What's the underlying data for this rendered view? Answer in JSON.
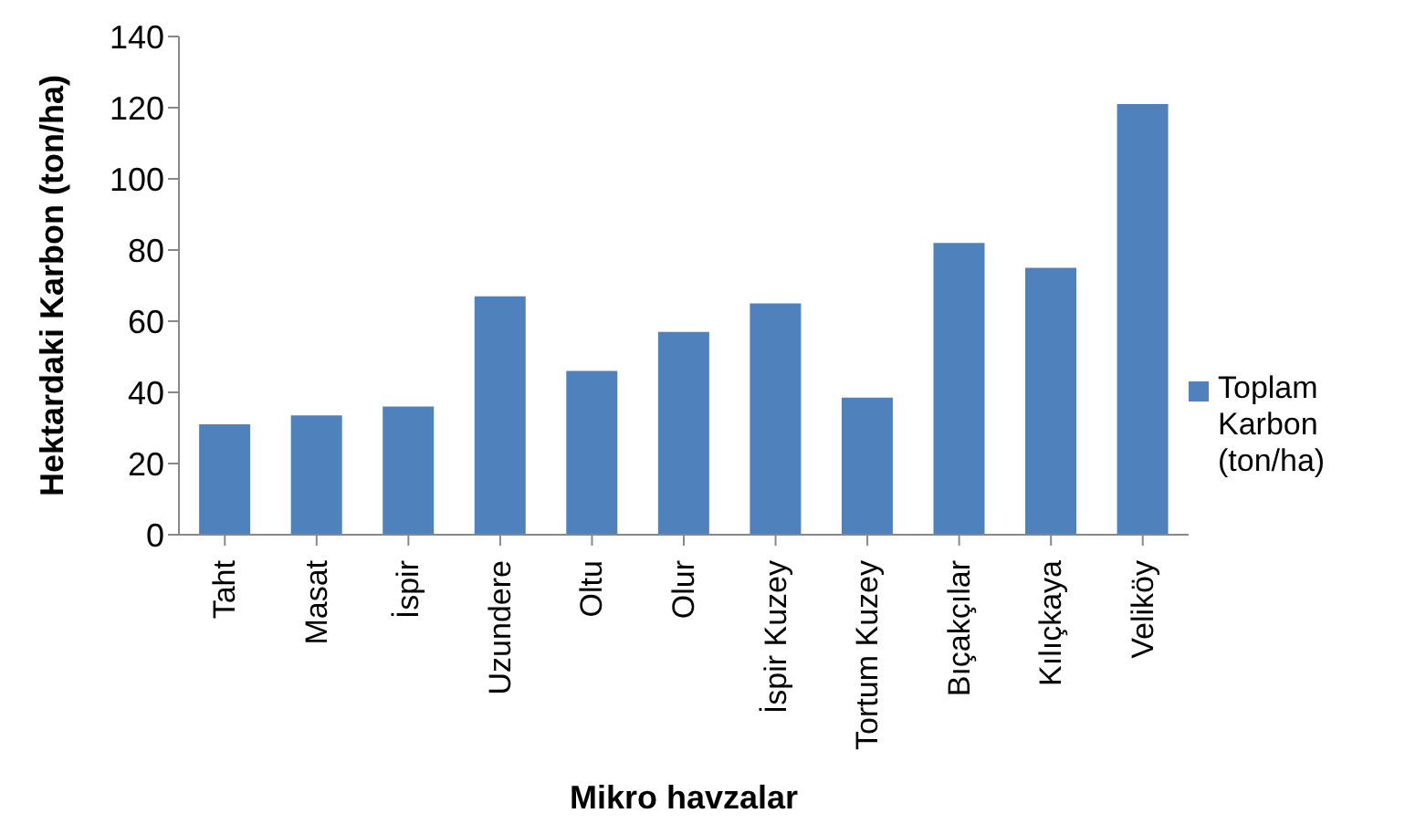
{
  "chart_data": {
    "type": "bar",
    "xlabel": "Mikro havzalar",
    "ylabel": "Hektardaki Karbon (ton/ha)",
    "categories": [
      "Taht",
      "Masat",
      "İspir",
      "Uzundere",
      "Oltu",
      "Olur",
      "İspir Kuzey",
      "Tortum Kuzey",
      "Bıçakçılar",
      "Kılıçkaya",
      "Veliköy"
    ],
    "series": [
      {
        "name": "Toplam Karbon (ton/ha)",
        "color": "#4f81bd",
        "values": [
          31,
          33.5,
          36,
          67,
          46,
          57,
          65,
          38.5,
          82,
          75,
          121
        ]
      }
    ],
    "ylim": [
      0,
      140
    ],
    "yticks": [
      0,
      20,
      40,
      60,
      80,
      100,
      120,
      140
    ],
    "grid": false,
    "legend": "right"
  }
}
